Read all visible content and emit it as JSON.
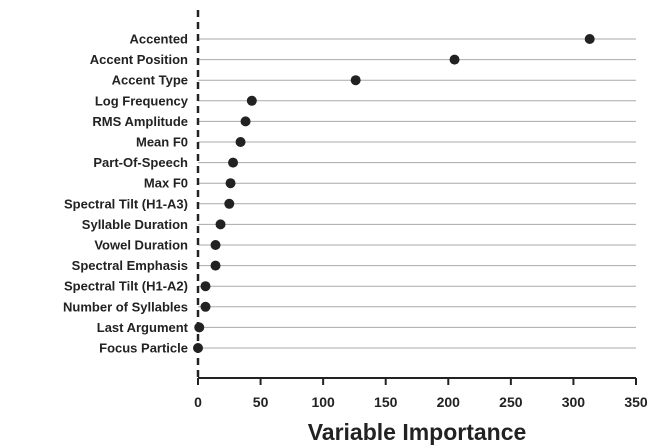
{
  "chart_data": {
    "type": "scatter",
    "title": "",
    "xlabel": "Variable Importance",
    "ylabel": "",
    "xlim": [
      0,
      350
    ],
    "xticks": [
      0,
      50,
      100,
      150,
      200,
      250,
      300,
      350
    ],
    "reference_line": {
      "x": 0,
      "style": "dashed"
    },
    "grid": "horizontal",
    "legend": "none",
    "categories": [
      "Accented",
      "Accent Position",
      "Accent Type",
      "Log Frequency",
      "RMS Amplitude",
      "Mean F0",
      "Part-Of-Speech",
      "Max F0",
      "Spectral Tilt (H1-A3)",
      "Syllable Duration",
      "Vowel Duration",
      "Spectral Emphasis",
      "Spectral Tilt (H1-A2)",
      "Number of Syllables",
      "Last Argument",
      "Focus Particle"
    ],
    "values": [
      313,
      205,
      126,
      43,
      38,
      34,
      28,
      26,
      25,
      18,
      14,
      14,
      6,
      6,
      1,
      0
    ],
    "colors": {
      "point": "#222222",
      "grid": "#aaaaaa",
      "axis": "#222222"
    }
  }
}
